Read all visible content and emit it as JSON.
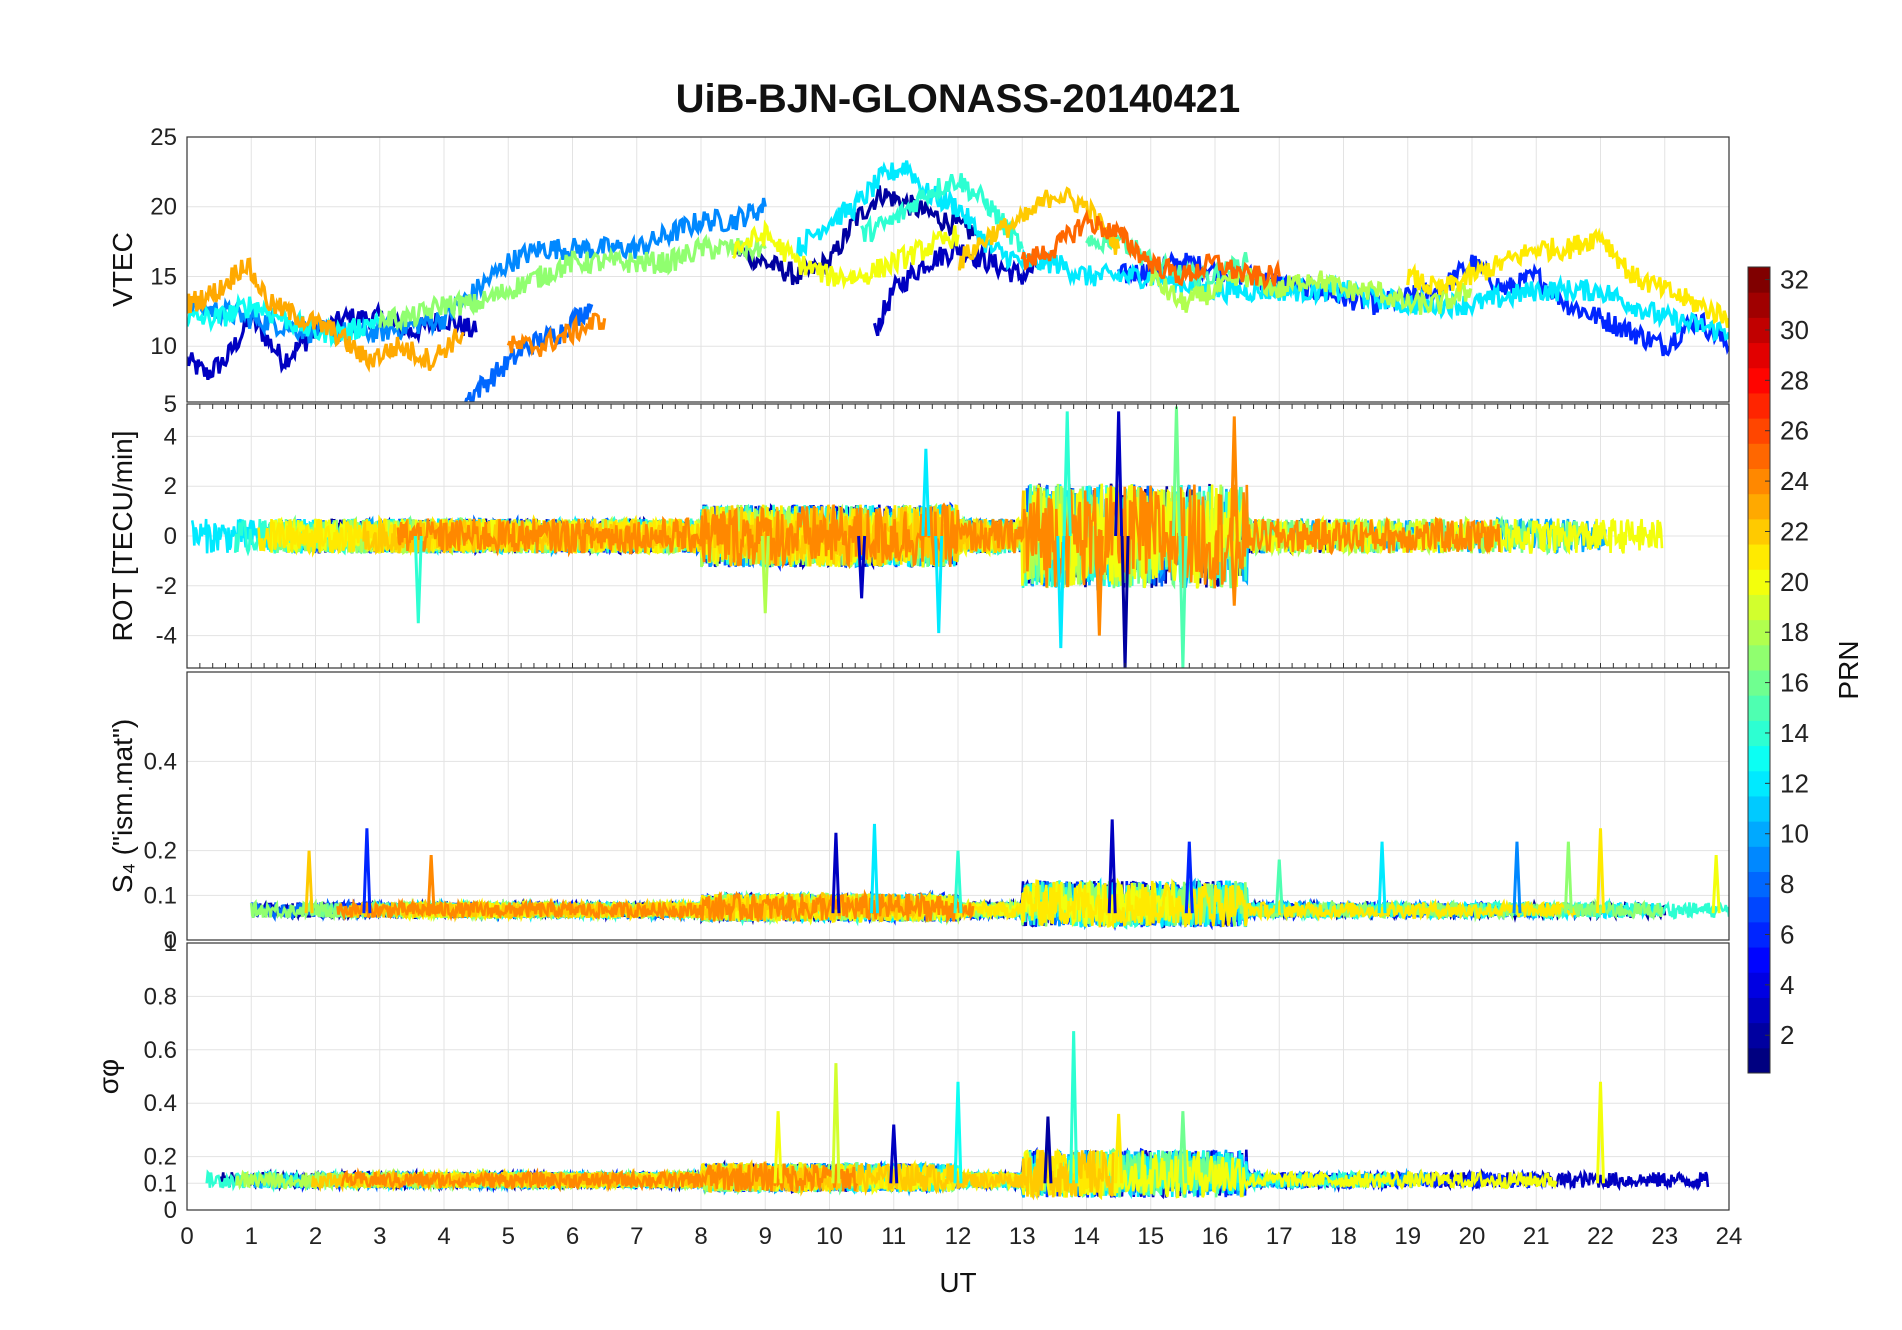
{
  "chart_data": {
    "type": "line",
    "title": "UiB-BJN-GLONASS-20140421",
    "xlabel": "UT",
    "xlim": [
      0,
      24
    ],
    "x_ticks": [
      "0",
      "1",
      "2",
      "3",
      "4",
      "5",
      "6",
      "7",
      "8",
      "9",
      "10",
      "11",
      "12",
      "13",
      "14",
      "15",
      "16",
      "17",
      "18",
      "19",
      "20",
      "21",
      "22",
      "23",
      "24"
    ],
    "colorbar": {
      "label": "PRN",
      "colormap": "jet",
      "range": [
        1,
        32
      ],
      "ticks": [
        "2",
        "4",
        "6",
        "8",
        "10",
        "12",
        "14",
        "16",
        "18",
        "20",
        "22",
        "24",
        "26",
        "28",
        "30",
        "32"
      ]
    },
    "panels": [
      {
        "ylabel": "VTEC",
        "ylim": [
          6,
          25
        ],
        "y_ticks": [
          "10",
          "15",
          "20",
          "25"
        ],
        "series": [
          {
            "prn": 3,
            "x": [
              0,
              0.3,
              0.6,
              1,
              1.5,
              2,
              2.5,
              3,
              3.5,
              4,
              4.5
            ],
            "y": [
              9,
              8,
              9,
              12,
              9,
              11,
              12,
              12,
              11,
              12,
              11
            ]
          },
          {
            "prn": 2,
            "x": [
              8.5,
              9,
              9.5,
              10,
              10.4,
              10.8,
              11.3,
              11.8,
              12.3
            ],
            "y": [
              17,
              16,
              15,
              16,
              19,
              21,
              20,
              19,
              18
            ]
          },
          {
            "prn": 3,
            "x": [
              10.7,
              11,
              11.5,
              12,
              12.5,
              13,
              13.3
            ],
            "y": [
              11,
              14,
              16,
              17,
              16,
              15,
              16
            ]
          },
          {
            "prn": 6,
            "x": [
              14.5,
              15.5,
              16.5,
              17.5,
              18.5,
              19.5,
              20,
              20.5,
              21,
              21.5,
              22,
              22.5,
              23,
              23.5,
              24
            ],
            "y": [
              15,
              16,
              15,
              14,
              13,
              14,
              16,
              14,
              15,
              13,
              12,
              11,
              10,
              12,
              10
            ]
          },
          {
            "prn": 9,
            "x": [
              0,
              1,
              2,
              3,
              4,
              4.5,
              5,
              5.5,
              6,
              6.5,
              7,
              7.5,
              8,
              8.5,
              9
            ],
            "y": [
              13,
              12,
              11,
              11,
              12,
              14,
              16,
              17,
              17,
              17,
              17,
              18,
              19,
              19,
              20
            ]
          },
          {
            "prn": 8,
            "x": [
              4.3,
              4.8,
              5.3,
              5.8,
              6.3
            ],
            "y": [
              6,
              8,
              10,
              11,
              13
            ]
          },
          {
            "prn": 12,
            "x": [
              9.5,
              10,
              10.4,
              10.8,
              11.2,
              11.5,
              12,
              12.5,
              13,
              13.5,
              14,
              14.5,
              15,
              16,
              17,
              18,
              19,
              20,
              21,
              22,
              23,
              24
            ],
            "y": [
              17,
              19,
              20,
              22,
              23,
              21,
              20,
              17,
              16,
              16,
              15,
              15,
              15,
              14,
              14,
              14,
              13,
              13,
              14,
              14,
              12,
              11
            ]
          },
          {
            "prn": 13,
            "x": [
              0,
              0.5,
              1,
              1.5,
              2,
              2.5,
              3
            ],
            "y": [
              12,
              12,
              13,
              12,
              11,
              11,
              12
            ]
          },
          {
            "prn": 14,
            "x": [
              10.5,
              11,
              11.5,
              12,
              12.5,
              13
            ],
            "y": [
              18,
              19,
              21,
              22,
              20,
              17
            ]
          },
          {
            "prn": 15,
            "x": [
              14,
              14.5,
              15,
              15.5,
              16,
              16.5
            ],
            "y": [
              17,
              18,
              16,
              15,
              15,
              16
            ]
          },
          {
            "prn": 17,
            "x": [
              3,
              3.5,
              4,
              4.5,
              5,
              5.5,
              6,
              6.5,
              7,
              7.5,
              8,
              8.5,
              9
            ],
            "y": [
              12,
              12,
              13,
              13,
              14,
              15,
              16,
              16,
              16,
              16,
              17,
              17,
              17
            ]
          },
          {
            "prn": 18,
            "x": [
              15,
              15.5,
              16,
              16.5,
              17,
              17.5,
              18,
              18.5,
              19,
              19.5,
              20
            ],
            "y": [
              15,
              13,
              14,
              15,
              14,
              15,
              14,
              14,
              13,
              13,
              14
            ]
          },
          {
            "prn": 20,
            "x": [
              8.5,
              9,
              9.5,
              10,
              10.5,
              11,
              11.5,
              12
            ],
            "y": [
              17,
              18,
              16,
              15,
              15,
              16,
              17,
              18
            ]
          },
          {
            "prn": 21,
            "x": [
              19,
              19.5,
              20,
              20.5,
              21,
              21.5,
              22,
              22.5,
              23,
              23.5,
              24
            ],
            "y": [
              15,
              14,
              15,
              16,
              17,
              17,
              18,
              15,
              14,
              13,
              12
            ]
          },
          {
            "prn": 22,
            "x": [
              12,
              12.5,
              13,
              13.5,
              14,
              14.5
            ],
            "y": [
              16,
              18,
              19,
              21,
              20,
              17
            ]
          },
          {
            "prn": 23,
            "x": [
              0,
              0.5,
              0.9,
              1.3,
              1.8,
              2.3,
              2.8,
              3.3,
              3.8,
              4.3
            ],
            "y": [
              13,
              14,
              16,
              13,
              12,
              11,
              9,
              10,
              9,
              11
            ]
          },
          {
            "prn": 24,
            "x": [
              5,
              5.5,
              6,
              6.5
            ],
            "y": [
              10,
              10,
              11,
              12
            ]
          },
          {
            "prn": 25,
            "x": [
              13,
              13.5,
              14,
              14.5,
              15,
              15.5,
              16,
              16.5,
              17
            ],
            "y": [
              16,
              17,
              19,
              18,
              16,
              15,
              16,
              15,
              15
            ]
          }
        ]
      },
      {
        "ylabel": "ROT [TECU/min]",
        "ylim": [
          -5.3,
          5.3
        ],
        "y_ticks": [
          "-4",
          "-2",
          "0",
          "2",
          "4"
        ],
        "y_ticks_extra": [
          "5"
        ],
        "series": []
      },
      {
        "ylabel": "S₄ (\"ism.mat\")",
        "ylim": [
          0,
          0.6
        ],
        "y_ticks": [
          "0",
          "0.1",
          "0.2",
          "0.4"
        ],
        "series": []
      },
      {
        "ylabel": "σφ",
        "ylim": [
          0,
          1
        ],
        "y_ticks": [
          "0",
          "0.1",
          "0.2",
          "0.4",
          "0.6",
          "0.8",
          "1"
        ],
        "series": []
      }
    ],
    "spikes": {
      "rot": [
        {
          "x": 14.5,
          "y": 5.0,
          "prn": 3
        },
        {
          "x": 14.6,
          "y": -5.3,
          "prn": 2
        },
        {
          "x": 13.7,
          "y": 5.0,
          "prn": 14
        },
        {
          "x": 13.6,
          "y": -4.5,
          "prn": 12
        },
        {
          "x": 15.4,
          "y": 5.2,
          "prn": 16
        },
        {
          "x": 15.5,
          "y": -5.3,
          "prn": 15
        },
        {
          "x": 16.3,
          "y": 4.8,
          "prn": 24
        },
        {
          "x": 16.3,
          "y": -2.8,
          "prn": 24
        },
        {
          "x": 14.2,
          "y": -4.0,
          "prn": 24
        },
        {
          "x": 11.7,
          "y": -3.9,
          "prn": 12
        },
        {
          "x": 9.0,
          "y": -3.1,
          "prn": 18
        },
        {
          "x": 3.6,
          "y": -3.5,
          "prn": 14
        },
        {
          "x": 10.5,
          "y": -2.5,
          "prn": 3
        },
        {
          "x": 11.5,
          "y": 3.5,
          "prn": 12
        }
      ],
      "s4": [
        {
          "x": 2.8,
          "y": 0.25,
          "prn": 6
        },
        {
          "x": 10.1,
          "y": 0.24,
          "prn": 3
        },
        {
          "x": 10.7,
          "y": 0.26,
          "prn": 12
        },
        {
          "x": 14.4,
          "y": 0.27,
          "prn": 3
        },
        {
          "x": 22,
          "y": 0.25,
          "prn": 21
        },
        {
          "x": 21.5,
          "y": 0.22,
          "prn": 17
        },
        {
          "x": 1.9,
          "y": 0.2,
          "prn": 22
        },
        {
          "x": 3.8,
          "y": 0.19,
          "prn": 24
        },
        {
          "x": 15.6,
          "y": 0.22,
          "prn": 6
        },
        {
          "x": 17,
          "y": 0.18,
          "prn": 15
        },
        {
          "x": 18.6,
          "y": 0.22,
          "prn": 12
        },
        {
          "x": 20.7,
          "y": 0.22,
          "prn": 9
        },
        {
          "x": 23.8,
          "y": 0.19,
          "prn": 20
        },
        {
          "x": 12,
          "y": 0.2,
          "prn": 14
        }
      ],
      "sigma": [
        {
          "x": 10.1,
          "y": 0.55,
          "prn": 19
        },
        {
          "x": 13.8,
          "y": 0.67,
          "prn": 14
        },
        {
          "x": 12.0,
          "y": 0.48,
          "prn": 13
        },
        {
          "x": 22.0,
          "y": 0.48,
          "prn": 20
        },
        {
          "x": 9.2,
          "y": 0.37,
          "prn": 20
        },
        {
          "x": 11.0,
          "y": 0.32,
          "prn": 3
        },
        {
          "x": 13.4,
          "y": 0.35,
          "prn": 2
        },
        {
          "x": 14.5,
          "y": 0.36,
          "prn": 21
        },
        {
          "x": 15.5,
          "y": 0.37,
          "prn": 16
        }
      ]
    }
  }
}
